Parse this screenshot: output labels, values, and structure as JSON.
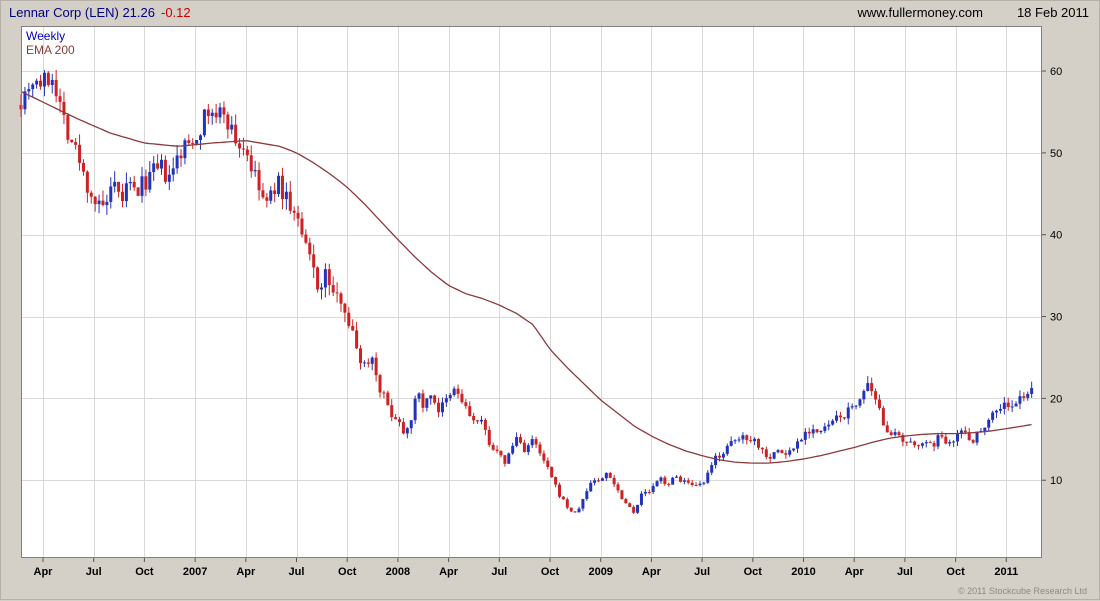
{
  "header": {
    "title_main": "Lennar Corp (LEN) 21.26",
    "change": "-0.12",
    "website": "www.fullermoney.com",
    "date": "18 Feb 2011"
  },
  "legend": {
    "timeframe": "Weekly",
    "overlay": "EMA 200"
  },
  "footer": {
    "copyright": "© 2011 Stockcube Research Ltd"
  },
  "chart_data": {
    "type": "candlestick",
    "title": "Lennar Corp (LEN) 21.26 -0.12",
    "name": "Lennar Corp",
    "symbol": "LEN",
    "last_price": 21.26,
    "change": -0.12,
    "timeframe": "Weekly",
    "overlay": "EMA 200",
    "legend_position": "top-left",
    "grid": true,
    "ylim": [
      0.5,
      65.5
    ],
    "y_ticks": [
      10,
      20,
      30,
      40,
      50,
      60
    ],
    "x_ticks": [
      {
        "label": "Apr",
        "t": 2
      },
      {
        "label": "Jul",
        "t": 5
      },
      {
        "label": "Oct",
        "t": 8
      },
      {
        "label": "2007",
        "t": 11
      },
      {
        "label": "Apr",
        "t": 14
      },
      {
        "label": "Jul",
        "t": 17
      },
      {
        "label": "Oct",
        "t": 20
      },
      {
        "label": "2008",
        "t": 23
      },
      {
        "label": "Apr",
        "t": 26
      },
      {
        "label": "Jul",
        "t": 29
      },
      {
        "label": "Oct",
        "t": 32
      },
      {
        "label": "2009",
        "t": 35
      },
      {
        "label": "Apr",
        "t": 38
      },
      {
        "label": "Jul",
        "t": 41
      },
      {
        "label": "Oct",
        "t": 44
      },
      {
        "label": "2010",
        "t": 47
      },
      {
        "label": "Apr",
        "t": 50
      },
      {
        "label": "Jul",
        "t": 53
      },
      {
        "label": "Oct",
        "t": 56
      },
      {
        "label": "2011",
        "t": 59
      }
    ],
    "t_unit": "months since Feb 2006",
    "t_start": 0.7,
    "t_end": 60.5,
    "weeks": 260,
    "price_anchors": [
      [
        0.7,
        56.5
      ],
      [
        1.3,
        59
      ],
      [
        2,
        58.5
      ],
      [
        2.6,
        59.5
      ],
      [
        3,
        56
      ],
      [
        3.5,
        52.5
      ],
      [
        4,
        50
      ],
      [
        4.5,
        46.5
      ],
      [
        5,
        44.5
      ],
      [
        5.4,
        42.8
      ],
      [
        5.8,
        44
      ],
      [
        6.2,
        45.5
      ],
      [
        6.6,
        44
      ],
      [
        7,
        46
      ],
      [
        7.5,
        45
      ],
      [
        8,
        46.5
      ],
      [
        8.5,
        47.5
      ],
      [
        9,
        48
      ],
      [
        9.5,
        46.5
      ],
      [
        10,
        49.5
      ],
      [
        10.5,
        51
      ],
      [
        11,
        52
      ],
      [
        11.5,
        54
      ],
      [
        12,
        55.3
      ],
      [
        12.3,
        53.5
      ],
      [
        12.6,
        55.8
      ],
      [
        13,
        53.5
      ],
      [
        13.5,
        51
      ],
      [
        14,
        50.5
      ],
      [
        14.5,
        47
      ],
      [
        15,
        44.5
      ],
      [
        15.3,
        43.5
      ],
      [
        15.8,
        46.5
      ],
      [
        16.3,
        45
      ],
      [
        17,
        42
      ],
      [
        17.5,
        38.5
      ],
      [
        18,
        36
      ],
      [
        18.4,
        33
      ],
      [
        18.8,
        35.5
      ],
      [
        19.3,
        31.5
      ],
      [
        19.7,
        33
      ],
      [
        20,
        30
      ],
      [
        20.5,
        26.5
      ],
      [
        21,
        24
      ],
      [
        21.4,
        25.5
      ],
      [
        22,
        21
      ],
      [
        22.5,
        18.5
      ],
      [
        23,
        17.5
      ],
      [
        23.4,
        15.8
      ],
      [
        23.8,
        18
      ],
      [
        24.2,
        20.5
      ],
      [
        24.6,
        19
      ],
      [
        25,
        20.8
      ],
      [
        25.4,
        18.5
      ],
      [
        26,
        19.8
      ],
      [
        26.4,
        21.2
      ],
      [
        27,
        18.8
      ],
      [
        27.5,
        17.2
      ],
      [
        28,
        16.8
      ],
      [
        28.4,
        14.8
      ],
      [
        29,
        12.8
      ],
      [
        29.4,
        12.2
      ],
      [
        30,
        15.3
      ],
      [
        30.5,
        13.8
      ],
      [
        31,
        14.8
      ],
      [
        31.5,
        12.8
      ],
      [
        32,
        10.8
      ],
      [
        32.4,
        8.8
      ],
      [
        33,
        6.8
      ],
      [
        33.5,
        5.8
      ],
      [
        34,
        7.8
      ],
      [
        34.5,
        10.2
      ],
      [
        35,
        9.8
      ],
      [
        35.4,
        11.2
      ],
      [
        36,
        8.8
      ],
      [
        36.5,
        7.2
      ],
      [
        37,
        6.2
      ],
      [
        37.4,
        8.2
      ],
      [
        38,
        8.8
      ],
      [
        38.5,
        10.2
      ],
      [
        39,
        9.6
      ],
      [
        39.5,
        10.4
      ],
      [
        40,
        9.8
      ],
      [
        40.5,
        9
      ],
      [
        41,
        9.4
      ],
      [
        41.4,
        10.8
      ],
      [
        41.8,
        12.8
      ],
      [
        42.3,
        13.6
      ],
      [
        43,
        14.8
      ],
      [
        43.5,
        15.4
      ],
      [
        44,
        15.2
      ],
      [
        44.5,
        13.8
      ],
      [
        45,
        12.9
      ],
      [
        45.5,
        13.6
      ],
      [
        46,
        13.1
      ],
      [
        46.5,
        14.2
      ],
      [
        47,
        15.8
      ],
      [
        47.5,
        16.4
      ],
      [
        48,
        15.6
      ],
      [
        48.5,
        16.8
      ],
      [
        49,
        17.4
      ],
      [
        49.5,
        18.2
      ],
      [
        50,
        18.8
      ],
      [
        50.4,
        20.6
      ],
      [
        50.8,
        21.2
      ],
      [
        51.3,
        19.2
      ],
      [
        51.8,
        16.8
      ],
      [
        52.3,
        15.6
      ],
      [
        53,
        14.4
      ],
      [
        53.5,
        14.2
      ],
      [
        54,
        15
      ],
      [
        54.4,
        13.9
      ],
      [
        55,
        15.2
      ],
      [
        55.5,
        14.9
      ],
      [
        56,
        15.4
      ],
      [
        56.5,
        16.1
      ],
      [
        57,
        14.9
      ],
      [
        57.5,
        16.2
      ],
      [
        58,
        17.8
      ],
      [
        58.5,
        18.8
      ],
      [
        59,
        19.4
      ],
      [
        59.4,
        18.7
      ],
      [
        59.8,
        19.8
      ],
      [
        60.2,
        20.8
      ],
      [
        60.5,
        21.26
      ]
    ],
    "ema_anchors": [
      [
        0.7,
        57.5
      ],
      [
        2,
        56.2
      ],
      [
        4,
        54.2
      ],
      [
        6,
        52.4
      ],
      [
        8,
        51.2
      ],
      [
        10,
        50.8
      ],
      [
        12,
        51.2
      ],
      [
        14,
        51.5
      ],
      [
        16,
        50.8
      ],
      [
        17,
        50
      ],
      [
        18,
        48.8
      ],
      [
        19,
        47.4
      ],
      [
        20,
        45.8
      ],
      [
        21,
        43.8
      ],
      [
        22,
        41.6
      ],
      [
        23,
        39.4
      ],
      [
        24,
        37.3
      ],
      [
        25,
        35.4
      ],
      [
        26,
        33.8
      ],
      [
        27,
        32.8
      ],
      [
        28,
        32.2
      ],
      [
        29,
        31.4
      ],
      [
        30,
        30.4
      ],
      [
        31,
        29
      ],
      [
        32,
        26
      ],
      [
        33,
        23.8
      ],
      [
        34,
        21.8
      ],
      [
        35,
        19.8
      ],
      [
        36,
        18.2
      ],
      [
        37,
        16.6
      ],
      [
        38,
        15.4
      ],
      [
        39,
        14.4
      ],
      [
        40,
        13.6
      ],
      [
        41,
        13
      ],
      [
        42,
        12.5
      ],
      [
        43,
        12.2
      ],
      [
        44,
        12.1
      ],
      [
        45,
        12.1
      ],
      [
        46,
        12.3
      ],
      [
        47,
        12.6
      ],
      [
        48,
        13
      ],
      [
        49,
        13.5
      ],
      [
        50,
        14
      ],
      [
        51,
        14.6
      ],
      [
        52,
        15.1
      ],
      [
        53,
        15.4
      ],
      [
        54,
        15.6
      ],
      [
        55,
        15.7
      ],
      [
        56,
        15.7
      ],
      [
        57,
        15.8
      ],
      [
        58,
        16
      ],
      [
        59,
        16.3
      ],
      [
        60.5,
        16.8
      ]
    ],
    "colors": {
      "up": "#2233bb",
      "down": "#cc2222",
      "ema": "#8b3a3a",
      "grid": "#d9d9d9",
      "frame": "#808080",
      "title": "#000080",
      "change": "#cc0000",
      "plot_bg": "#ffffff",
      "page_bg": "#d4d0c8"
    }
  }
}
